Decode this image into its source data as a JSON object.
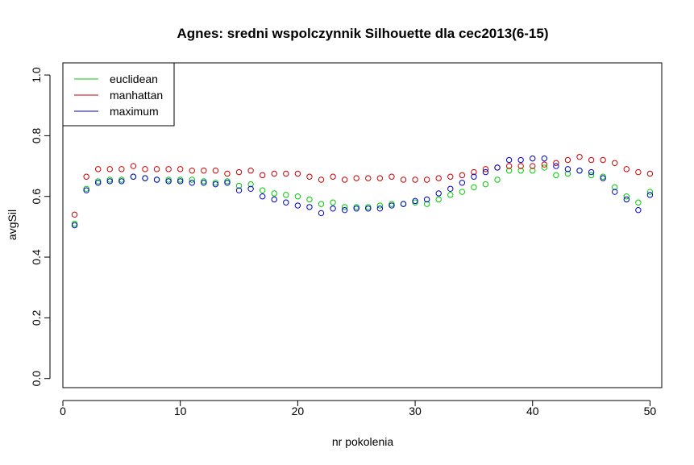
{
  "chart_data": {
    "type": "scatter",
    "title": "Agnes: sredni wspolczynnik Silhouette dla cec2013(6-15)",
    "xlabel": "nr pokolenia",
    "ylabel": "avgSil",
    "xlim": [
      0,
      51
    ],
    "ylim": [
      -0.03,
      1.04
    ],
    "xticks": [
      0,
      10,
      20,
      30,
      40,
      50
    ],
    "xtick_labels": [
      "0",
      "10",
      "20",
      "30",
      "40",
      "50"
    ],
    "yticks": [
      0,
      0.2,
      0.4,
      0.6,
      0.8,
      1.0
    ],
    "ytick_labels": [
      "0.0",
      "0.2",
      "0.4",
      "0.6",
      "0.8",
      "1.0"
    ],
    "grid": false,
    "legend_position": "top-left",
    "x": [
      1,
      2,
      3,
      4,
      5,
      6,
      7,
      8,
      9,
      10,
      11,
      12,
      13,
      14,
      15,
      16,
      17,
      18,
      19,
      20,
      21,
      22,
      23,
      24,
      25,
      26,
      27,
      28,
      29,
      30,
      31,
      32,
      33,
      34,
      35,
      36,
      37,
      38,
      39,
      40,
      41,
      42,
      43,
      44,
      45,
      46,
      47,
      48,
      49,
      50
    ],
    "series": [
      {
        "name": "euclidean",
        "color": "#00cc00",
        "values": [
          0.51,
          0.625,
          0.65,
          0.655,
          0.655,
          0.665,
          0.66,
          0.655,
          0.655,
          0.655,
          0.655,
          0.65,
          0.645,
          0.65,
          0.635,
          0.64,
          0.62,
          0.61,
          0.605,
          0.6,
          0.59,
          0.575,
          0.58,
          0.565,
          0.565,
          0.565,
          0.57,
          0.575,
          0.575,
          0.58,
          0.575,
          0.59,
          0.605,
          0.615,
          0.63,
          0.64,
          0.655,
          0.685,
          0.685,
          0.685,
          0.695,
          0.67,
          0.675,
          0.685,
          0.67,
          0.665,
          0.63,
          0.6,
          0.58,
          0.615
        ]
      },
      {
        "name": "manhattan",
        "color": "#cc0000",
        "values": [
          0.54,
          0.665,
          0.69,
          0.69,
          0.69,
          0.7,
          0.69,
          0.69,
          0.69,
          0.69,
          0.685,
          0.685,
          0.685,
          0.675,
          0.68,
          0.685,
          0.67,
          0.675,
          0.675,
          0.675,
          0.665,
          0.655,
          0.665,
          0.655,
          0.66,
          0.66,
          0.66,
          0.665,
          0.655,
          0.655,
          0.655,
          0.66,
          0.665,
          0.67,
          0.68,
          0.69,
          0.695,
          0.7,
          0.7,
          0.7,
          0.705,
          0.71,
          0.72,
          0.73,
          0.72,
          0.72,
          0.71,
          0.69,
          0.68,
          0.675
        ]
      },
      {
        "name": "maximum",
        "color": "#0000cc",
        "values": [
          0.505,
          0.62,
          0.645,
          0.65,
          0.65,
          0.665,
          0.66,
          0.655,
          0.65,
          0.65,
          0.645,
          0.645,
          0.64,
          0.645,
          0.62,
          0.625,
          0.6,
          0.59,
          0.58,
          0.57,
          0.565,
          0.545,
          0.56,
          0.555,
          0.56,
          0.56,
          0.56,
          0.57,
          0.575,
          0.585,
          0.59,
          0.61,
          0.625,
          0.645,
          0.665,
          0.68,
          0.695,
          0.72,
          0.72,
          0.725,
          0.725,
          0.7,
          0.69,
          0.685,
          0.68,
          0.66,
          0.615,
          0.59,
          0.555,
          0.605
        ]
      }
    ]
  }
}
